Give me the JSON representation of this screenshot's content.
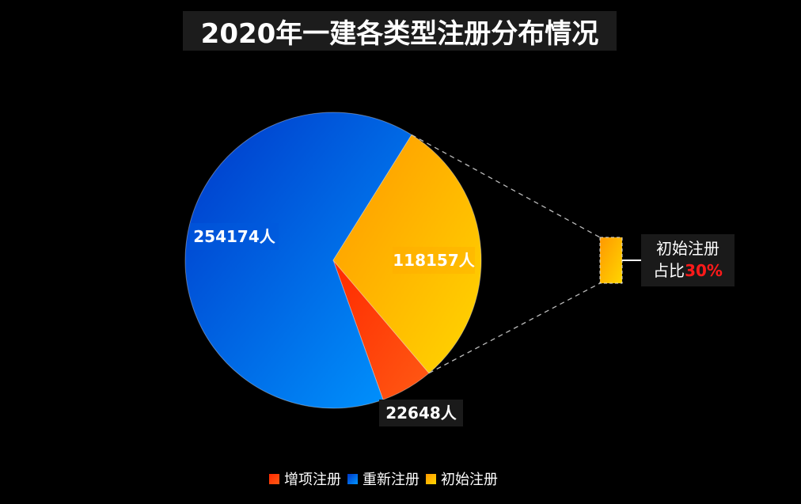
{
  "title": "2020年一建各类型注册分布情况",
  "chart_data": {
    "type": "pie",
    "title": "2020年一建各类型注册分布情况",
    "unit": "人",
    "slices": [
      {
        "name": "增项注册",
        "value": 22648,
        "label": "22648人",
        "color_start": "#ff2a00",
        "color_end": "#ff5a14"
      },
      {
        "name": "重新注册",
        "value": 254174,
        "label": "254174人",
        "color_start": "#0037c8",
        "color_end": "#0096ff"
      },
      {
        "name": "初始注册",
        "value": 118157,
        "label": "118157人",
        "color_start": "#ff9800",
        "color_end": "#ffd600"
      }
    ],
    "legend": [
      "增项注册",
      "重新注册",
      "初始注册"
    ],
    "legend_position": "bottom",
    "callout": {
      "line1": "初始注册",
      "line2_prefix": "占比",
      "line2_value": "30%"
    }
  }
}
